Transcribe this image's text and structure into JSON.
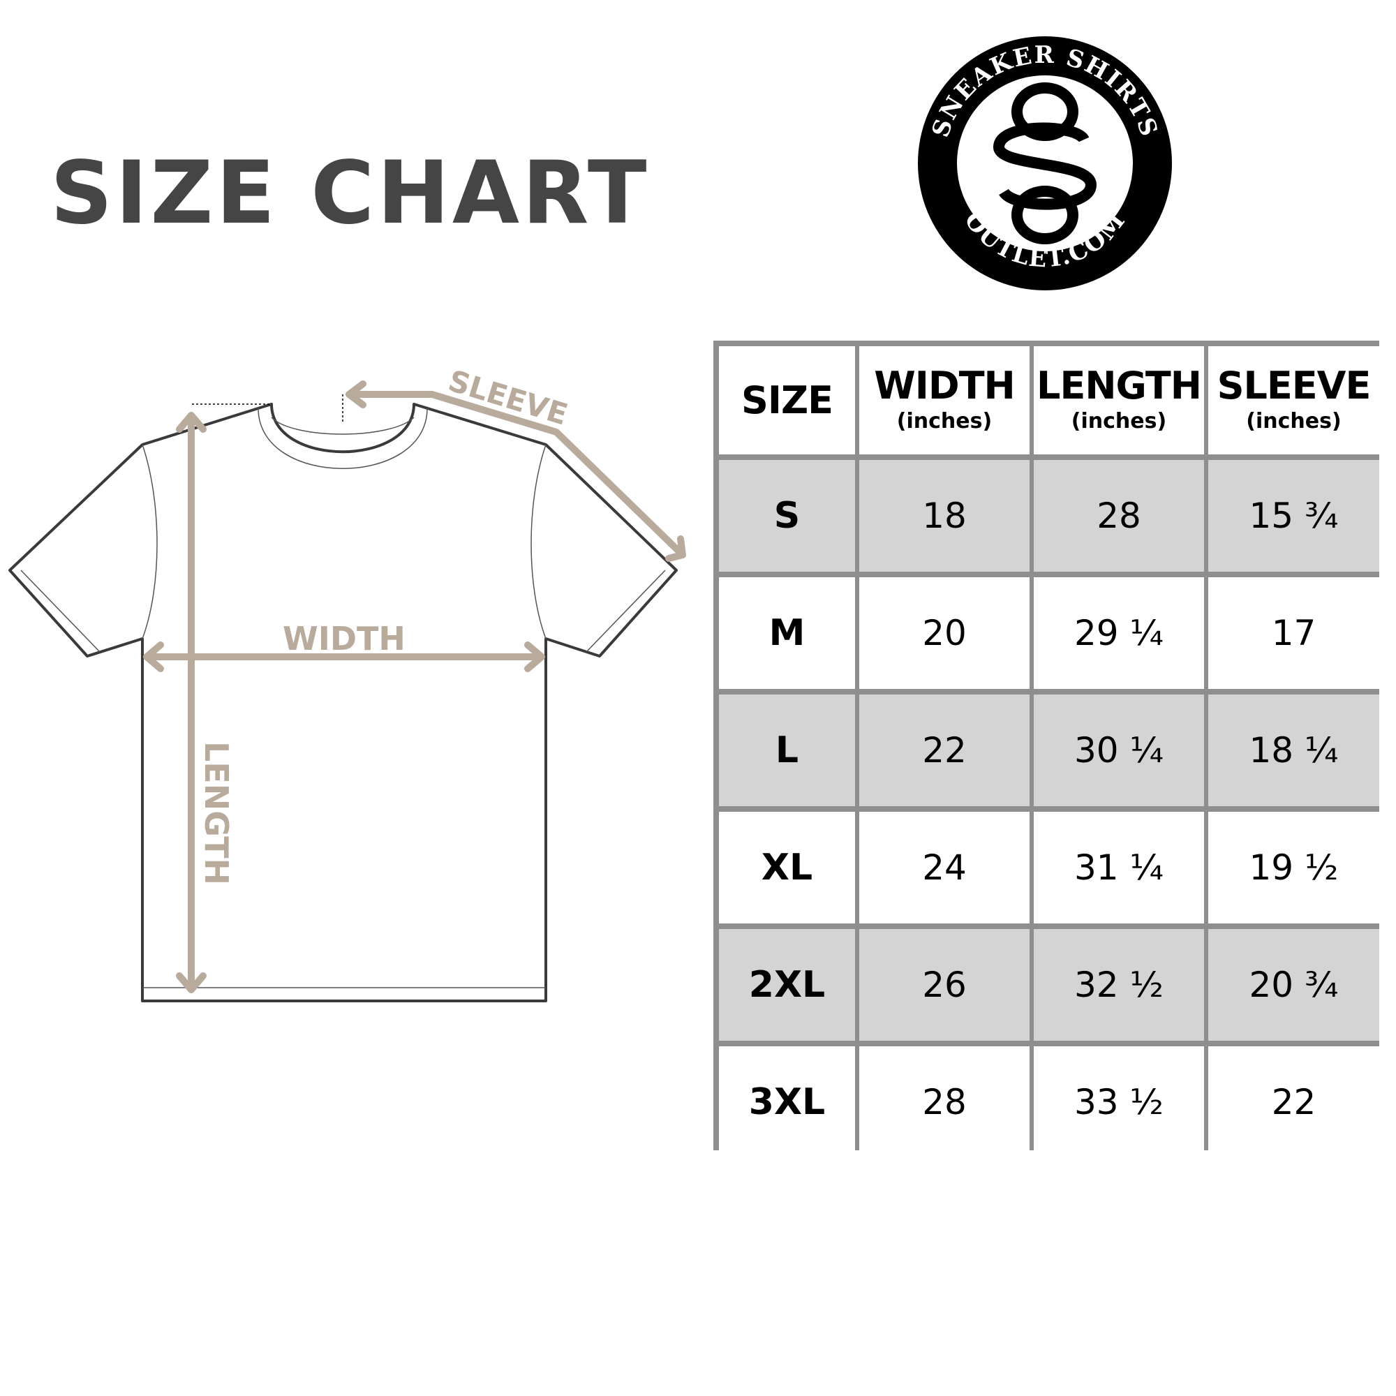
{
  "title": "SIZE CHART",
  "logo": {
    "text_top": "SNEAKER SHIRTS",
    "text_bottom": "OUTLET.COM",
    "monogram": "SSO"
  },
  "diagram": {
    "sleeve_label": "SLEEVE",
    "width_label": "WIDTH",
    "length_label": "LENGTH",
    "arrow_color": "#b8ab9c"
  },
  "table": {
    "headers": [
      {
        "label": "SIZE",
        "unit": ""
      },
      {
        "label": "WIDTH",
        "unit": "(inches)"
      },
      {
        "label": "LENGTH",
        "unit": "(inches)"
      },
      {
        "label": "SLEEVE",
        "unit": "(inches)"
      }
    ],
    "rows": [
      [
        "S",
        "18",
        "28",
        "15 ¾"
      ],
      [
        "M",
        "20",
        "29 ¼",
        "17"
      ],
      [
        "L",
        "22",
        "30 ¼",
        "18 ¼"
      ],
      [
        "XL",
        "24",
        "31 ¼",
        "19 ½"
      ],
      [
        "2XL",
        "26",
        "32 ½",
        "20 ¾"
      ],
      [
        "3XL",
        "28",
        "33 ½",
        "22"
      ]
    ],
    "shade_color": "#d4d4d4",
    "border_color": "#8e8e8e"
  }
}
